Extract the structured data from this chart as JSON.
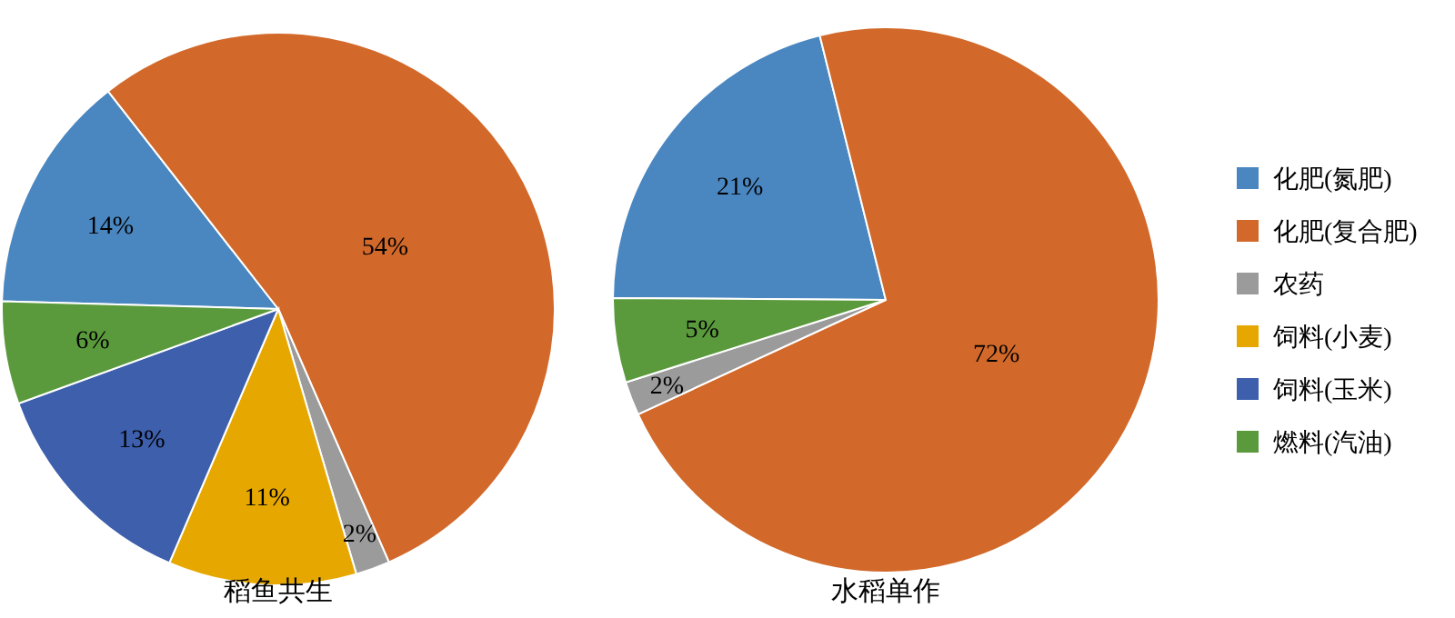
{
  "chart_data": [
    {
      "type": "pie",
      "title": "稻鱼共生",
      "categories": [
        "化肥(氮肥)",
        "化肥(复合肥)",
        "农药",
        "饲料(小麦)",
        "饲料(玉米)",
        "燃料(汽油)"
      ],
      "values": [
        14,
        54,
        2,
        11,
        13,
        6
      ],
      "value_labels": [
        "14%",
        "54%",
        "2%",
        "11%",
        "13%",
        "6%"
      ],
      "colors": [
        "#4a86c0",
        "#d2692a",
        "#9b9b9b",
        "#e6a800",
        "#3d5fac",
        "#5a9a3c"
      ],
      "legend": "right"
    },
    {
      "type": "pie",
      "title": "水稻单作",
      "categories": [
        null,
        null,
        null,
        null
      ],
      "values": [
        21,
        72,
        2,
        5
      ],
      "value_labels": [
        "21%",
        "72%",
        "2%",
        "5%"
      ],
      "colors": [
        "#4a86c0",
        "#d2692a",
        "#9b9b9b",
        "#5a9a3c"
      ]
    }
  ]
}
